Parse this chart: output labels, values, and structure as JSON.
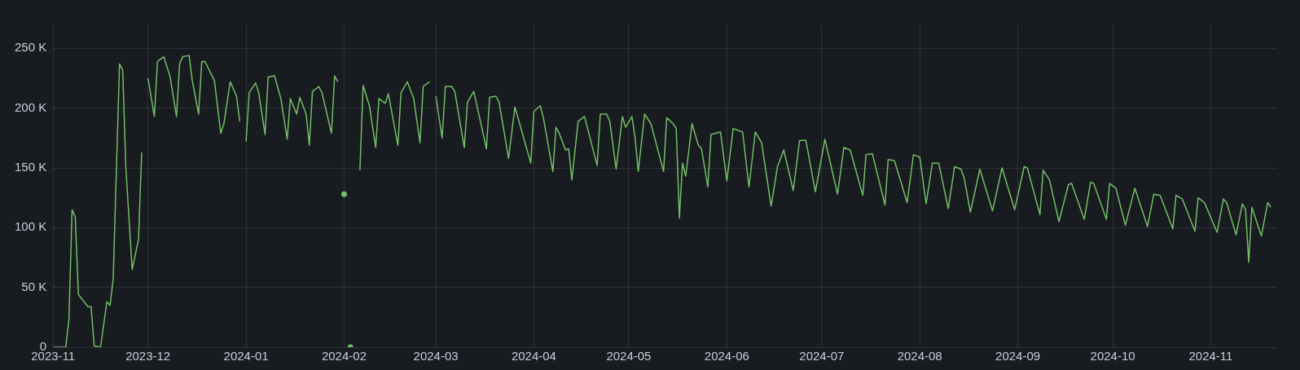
{
  "chart_data": {
    "type": "line",
    "xlim": [
      "2023-11-01",
      "2024-11-22"
    ],
    "ylim": [
      0,
      270000
    ],
    "xticks": [
      "2023-11",
      "2023-12",
      "2024-01",
      "2024-02",
      "2024-03",
      "2024-04",
      "2024-05",
      "2024-06",
      "2024-07",
      "2024-08",
      "2024-09",
      "2024-10",
      "2024-11"
    ],
    "yticks": [
      0,
      {
        "value": 50000,
        "label": "50 K"
      },
      {
        "value": 100000,
        "label": "100 K"
      },
      {
        "value": 150000,
        "label": "150 K"
      },
      {
        "value": 200000,
        "label": "200 K"
      },
      {
        "value": 250000,
        "label": "250 K"
      }
    ],
    "grid": true,
    "legend": false,
    "marker": "none",
    "line_style": "solid",
    "series": [
      {
        "color": "#73bf69",
        "x": [
          "2023-11-01",
          "2023-11-05",
          "2023-11-06",
          "2023-11-07",
          "2023-11-08",
          "2023-11-09",
          "2023-11-12",
          "2023-11-13",
          "2023-11-14",
          "2023-11-16",
          "2023-11-18",
          "2023-11-19",
          "2023-11-20",
          "2023-11-22",
          "2023-11-23",
          "2023-11-24",
          "2023-11-26",
          "2023-11-28",
          "2023-11-29",
          "2023-11-30",
          "2023-12-01",
          "2023-12-03",
          "2023-12-04",
          "2023-12-06",
          "2023-12-08",
          "2023-12-10",
          "2023-12-11",
          "2023-12-12",
          "2023-12-14",
          "2023-12-15",
          "2023-12-17",
          "2023-12-18",
          "2023-12-19",
          "2023-12-22",
          "2023-12-24",
          "2023-12-25",
          "2023-12-27",
          "2023-12-29",
          "2023-12-30",
          "2023-12-31",
          "2024-01-01",
          "2024-01-02",
          "2024-01-04",
          "2024-01-05",
          "2024-01-07",
          "2024-01-08",
          "2024-01-10",
          "2024-01-12",
          "2024-01-14",
          "2024-01-15",
          "2024-01-17",
          "2024-01-18",
          "2024-01-20",
          "2024-01-21",
          "2024-01-22",
          "2024-01-24",
          "2024-01-25",
          "2024-01-28",
          "2024-01-29",
          "2024-01-30",
          "2024-02-04",
          "2024-02-06",
          "2024-02-07",
          "2024-02-09",
          "2024-02-11",
          "2024-02-12",
          "2024-02-14",
          "2024-02-15",
          "2024-02-18",
          "2024-02-19",
          "2024-02-21",
          "2024-02-23",
          "2024-02-25",
          "2024-02-26",
          "2024-02-28",
          "2024-02-29",
          "2024-03-01",
          "2024-03-03",
          "2024-03-04",
          "2024-03-06",
          "2024-03-07",
          "2024-03-10",
          "2024-03-11",
          "2024-03-13",
          "2024-03-17",
          "2024-03-18",
          "2024-03-20",
          "2024-03-21",
          "2024-03-24",
          "2024-03-26",
          "2024-03-29",
          "2024-03-31",
          "2024-04-01",
          "2024-04-03",
          "2024-04-04",
          "2024-04-07",
          "2024-04-08",
          "2024-04-09",
          "2024-04-11",
          "2024-04-12",
          "2024-04-13",
          "2024-04-15",
          "2024-04-17",
          "2024-04-21",
          "2024-04-22",
          "2024-04-24",
          "2024-04-25",
          "2024-04-27",
          "2024-04-29",
          "2024-04-30",
          "2024-05-02",
          "2024-05-03",
          "2024-05-04",
          "2024-05-06",
          "2024-05-08",
          "2024-05-12",
          "2024-05-13",
          "2024-05-15",
          "2024-05-16",
          "2024-05-17",
          "2024-05-18",
          "2024-05-19",
          "2024-05-21",
          "2024-05-23",
          "2024-05-24",
          "2024-05-26",
          "2024-05-27",
          "2024-05-30",
          "2024-06-01",
          "2024-06-03",
          "2024-06-06",
          "2024-06-08",
          "2024-06-10",
          "2024-06-12",
          "2024-06-15",
          "2024-06-17",
          "2024-06-19",
          "2024-06-22",
          "2024-06-24",
          "2024-06-26",
          "2024-06-29",
          "2024-07-02",
          "2024-07-06",
          "2024-07-08",
          "2024-07-10",
          "2024-07-14",
          "2024-07-15",
          "2024-07-17",
          "2024-07-21",
          "2024-07-22",
          "2024-07-24",
          "2024-07-28",
          "2024-07-30",
          "2024-08-01",
          "2024-08-03",
          "2024-08-05",
          "2024-08-07",
          "2024-08-10",
          "2024-08-12",
          "2024-08-14",
          "2024-08-15",
          "2024-08-17",
          "2024-08-20",
          "2024-08-24",
          "2024-08-27",
          "2024-08-31",
          "2024-09-03",
          "2024-09-04",
          "2024-09-08",
          "2024-09-09",
          "2024-09-11",
          "2024-09-14",
          "2024-09-17",
          "2024-09-18",
          "2024-09-22",
          "2024-09-24",
          "2024-09-25",
          "2024-09-29",
          "2024-09-30",
          "2024-10-02",
          "2024-10-05",
          "2024-10-08",
          "2024-10-12",
          "2024-10-14",
          "2024-10-16",
          "2024-10-20",
          "2024-10-21",
          "2024-10-23",
          "2024-10-27",
          "2024-10-28",
          "2024-10-30",
          "2024-11-03",
          "2024-11-05",
          "2024-11-06",
          "2024-11-09",
          "2024-11-11",
          "2024-11-12",
          "2024-11-13",
          "2024-11-14",
          "2024-11-17",
          "2024-11-19",
          "2024-11-20"
        ],
        "values": [
          0,
          0,
          23000,
          115000,
          109000,
          44000,
          34000,
          34000,
          1000,
          0,
          38000,
          35000,
          57000,
          237000,
          232000,
          150000,
          65000,
          90000,
          163000,
          null,
          225000,
          193000,
          239000,
          243000,
          226000,
          193000,
          237000,
          243000,
          244000,
          223000,
          195000,
          239000,
          239000,
          223000,
          179000,
          187000,
          222000,
          210000,
          189000,
          null,
          172000,
          213000,
          221000,
          213000,
          178000,
          226000,
          227000,
          208000,
          174000,
          208000,
          195000,
          209000,
          195000,
          169000,
          214000,
          218000,
          213000,
          179000,
          227000,
          222000,
          null,
          148000,
          219000,
          202000,
          167000,
          208000,
          204000,
          212000,
          169000,
          213000,
          222000,
          208000,
          171000,
          218000,
          222000,
          null,
          210000,
          175000,
          218000,
          218000,
          214000,
          167000,
          205000,
          214000,
          166000,
          209000,
          210000,
          205000,
          158000,
          201000,
          173000,
          154000,
          197000,
          202000,
          192000,
          147000,
          184000,
          179000,
          165000,
          166000,
          140000,
          189000,
          193000,
          152000,
          195000,
          195000,
          189000,
          149000,
          193000,
          184000,
          193000,
          175000,
          147000,
          195000,
          187000,
          147000,
          192000,
          187000,
          183000,
          108000,
          154000,
          143000,
          187000,
          169000,
          166000,
          134000,
          178000,
          180000,
          139000,
          183000,
          180000,
          134000,
          180000,
          171000,
          118000,
          151000,
          165000,
          131000,
          173000,
          173000,
          130000,
          174000,
          128000,
          167000,
          165000,
          127000,
          161000,
          162000,
          119000,
          157000,
          156000,
          121000,
          161000,
          159000,
          120000,
          154000,
          154000,
          116000,
          151000,
          149000,
          142000,
          113000,
          149000,
          114000,
          150000,
          115000,
          151000,
          150000,
          111000,
          148000,
          140000,
          105000,
          136000,
          137000,
          107000,
          138000,
          137000,
          107000,
          137000,
          133000,
          102000,
          133000,
          101000,
          128000,
          127000,
          99000,
          127000,
          124000,
          97000,
          125000,
          121000,
          96000,
          124000,
          121000,
          94000,
          120000,
          115000,
          71000,
          117000,
          93000,
          121000,
          117000
        ]
      },
      {
        "type": "scatter",
        "marker": "circle",
        "color": "#73bf69",
        "x": [
          "2024-02-01",
          "2024-02-03"
        ],
        "values": [
          128000,
          0
        ]
      }
    ]
  }
}
